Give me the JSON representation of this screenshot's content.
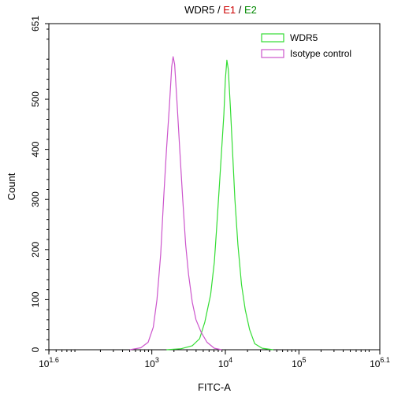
{
  "chart_data": {
    "type": "line",
    "title_parts": [
      {
        "text": "WDR5",
        "color": "#000000"
      },
      {
        "text": " / ",
        "color": "#000000"
      },
      {
        "text": "E1",
        "color": "#cc0000"
      },
      {
        "text": " / ",
        "color": "#000000"
      },
      {
        "text": "E2",
        "color": "#008800"
      }
    ],
    "xlabel": "FITC-A",
    "ylabel": "Count",
    "x_scale": "log10",
    "xlim": [
      1.6,
      6.1
    ],
    "ylim": [
      0,
      651
    ],
    "x_ticks": [
      {
        "exp": 1.6,
        "base": "10",
        "sup": "1.6"
      },
      {
        "exp": 3,
        "base": "10",
        "sup": "3"
      },
      {
        "exp": 4,
        "base": "10",
        "sup": "4"
      },
      {
        "exp": 5,
        "base": "10",
        "sup": "5"
      },
      {
        "exp": 6.1,
        "base": "10",
        "sup": "6.1"
      }
    ],
    "y_ticks": [
      {
        "value": 0,
        "label": "0"
      },
      {
        "value": 100,
        "label": "100"
      },
      {
        "value": 200,
        "label": "200"
      },
      {
        "value": 300,
        "label": "300"
      },
      {
        "value": 400,
        "label": "400"
      },
      {
        "value": 500,
        "label": "500"
      },
      {
        "value": 651,
        "label": "651"
      }
    ],
    "legend_position": "top-right",
    "grid": false,
    "series": [
      {
        "name": "WDR5",
        "color": "#33dd33",
        "points": [
          [
            3.2,
            0
          ],
          [
            3.4,
            2
          ],
          [
            3.55,
            8
          ],
          [
            3.65,
            22
          ],
          [
            3.72,
            55
          ],
          [
            3.8,
            110
          ],
          [
            3.85,
            175
          ],
          [
            3.88,
            240
          ],
          [
            3.92,
            330
          ],
          [
            3.95,
            400
          ],
          [
            3.98,
            470
          ],
          [
            4.0,
            540
          ],
          [
            4.02,
            578
          ],
          [
            4.04,
            560
          ],
          [
            4.07,
            480
          ],
          [
            4.1,
            390
          ],
          [
            4.13,
            300
          ],
          [
            4.17,
            210
          ],
          [
            4.22,
            130
          ],
          [
            4.27,
            80
          ],
          [
            4.33,
            40
          ],
          [
            4.4,
            12
          ],
          [
            4.5,
            3
          ],
          [
            4.65,
            0
          ]
        ]
      },
      {
        "name": "Isotype control",
        "color": "#cc55cc",
        "points": [
          [
            2.7,
            0
          ],
          [
            2.85,
            4
          ],
          [
            2.95,
            15
          ],
          [
            3.02,
            45
          ],
          [
            3.07,
            100
          ],
          [
            3.12,
            190
          ],
          [
            3.16,
            300
          ],
          [
            3.2,
            400
          ],
          [
            3.24,
            490
          ],
          [
            3.27,
            565
          ],
          [
            3.29,
            585
          ],
          [
            3.31,
            570
          ],
          [
            3.34,
            500
          ],
          [
            3.38,
            400
          ],
          [
            3.42,
            300
          ],
          [
            3.46,
            210
          ],
          [
            3.5,
            150
          ],
          [
            3.55,
            95
          ],
          [
            3.6,
            60
          ],
          [
            3.67,
            35
          ],
          [
            3.75,
            15
          ],
          [
            3.85,
            3
          ],
          [
            3.95,
            0
          ]
        ]
      }
    ]
  }
}
